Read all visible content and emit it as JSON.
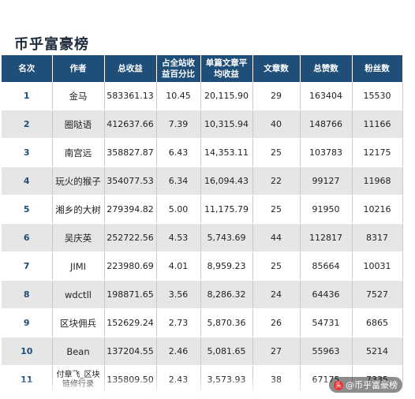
{
  "title": "币乎富豪榜",
  "headers": [
    "名次",
    "作者",
    "总收益",
    "占全站收益百分比",
    "单篇文章平均收益",
    "文章数",
    "总赞数",
    "粉丝数"
  ],
  "rows": [
    [
      "1",
      "金马",
      "583361.13",
      "10.45",
      "20,115.90",
      "29",
      "163404",
      "15530"
    ],
    [
      "2",
      "圈哒语",
      "412637.66",
      "7.39",
      "10,315.94",
      "40",
      "148766",
      "11166"
    ],
    [
      "3",
      "南宫远",
      "358827.87",
      "6.43",
      "14,353.11",
      "25",
      "103783",
      "12175"
    ],
    [
      "4",
      "玩火的猴子",
      "354077.53",
      "6.34",
      "16,094.43",
      "22",
      "99127",
      "11968"
    ],
    [
      "5",
      "湘乡的大树",
      "279394.82",
      "5.00",
      "11,175.79",
      "25",
      "91950",
      "10216"
    ],
    [
      "6",
      "吴庆英",
      "252722.56",
      "4.53",
      "5,743.69",
      "44",
      "112817",
      "8317"
    ],
    [
      "7",
      "JIMI",
      "223980.69",
      "4.01",
      "8,959.23",
      "25",
      "85664",
      "10031"
    ],
    [
      "8",
      "wdctll",
      "198871.65",
      "3.56",
      "8,286.32",
      "24",
      "64436",
      "7527"
    ],
    [
      "9",
      "区块佣兵",
      "152629.24",
      "2.73",
      "5,870.36",
      "26",
      "54731",
      "6865"
    ],
    [
      "10",
      "Bean",
      "137204.55",
      "2.46",
      "5,081.65",
      "27",
      "55963",
      "5214"
    ],
    [
      "11",
      "付章飞_区块链修行录",
      "135809.50",
      "2.43",
      "3,573.93",
      "38",
      "67175",
      "7335"
    ]
  ],
  "watermark": "@币乎富豪榜"
}
